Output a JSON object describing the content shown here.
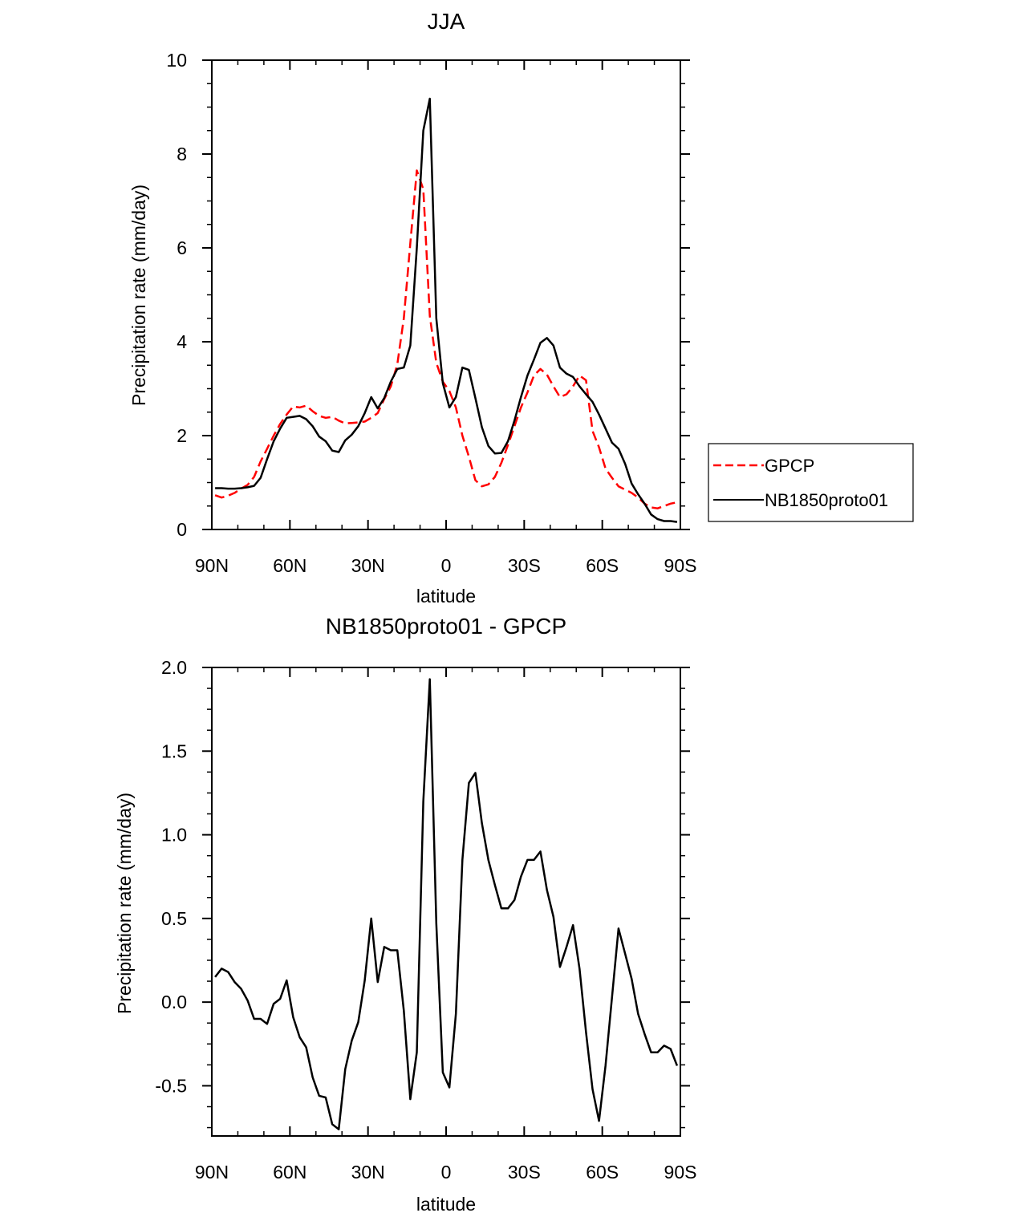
{
  "chart_data": [
    {
      "type": "line",
      "title": "JJA",
      "xlabel": "latitude",
      "ylabel": "Precipitation rate (mm/day)",
      "xlim": [
        -90,
        90
      ],
      "ylim": [
        0,
        10
      ],
      "x_ticks": [
        {
          "value": -90,
          "label": "90N"
        },
        {
          "value": -60,
          "label": "60N"
        },
        {
          "value": -30,
          "label": "30N"
        },
        {
          "value": 0,
          "label": "0"
        },
        {
          "value": 30,
          "label": "30S"
        },
        {
          "value": 60,
          "label": "60S"
        },
        {
          "value": 90,
          "label": "90S"
        }
      ],
      "y_ticks": [
        {
          "value": 0,
          "label": "0"
        },
        {
          "value": 2,
          "label": "2"
        },
        {
          "value": 4,
          "label": "4"
        },
        {
          "value": 6,
          "label": "6"
        },
        {
          "value": 8,
          "label": "8"
        },
        {
          "value": 10,
          "label": "10"
        }
      ],
      "legend": {
        "position": "right",
        "entries": [
          "GPCP",
          "NB1850proto01"
        ]
      },
      "series": [
        {
          "name": "GPCP",
          "color": "#ff0000",
          "dash": true,
          "x": [
            -88.75,
            -86.25,
            -83.75,
            -81.25,
            -78.75,
            -76.25,
            -73.75,
            -71.25,
            -68.75,
            -66.25,
            -63.75,
            -61.25,
            -58.75,
            -56.25,
            -53.75,
            -51.25,
            -48.75,
            -46.25,
            -43.75,
            -41.25,
            -38.75,
            -36.25,
            -33.75,
            -31.25,
            -28.75,
            -26.25,
            -23.75,
            -21.25,
            -18.75,
            -16.25,
            -13.75,
            -11.25,
            -8.75,
            -6.25,
            -3.75,
            -1.25,
            1.25,
            3.75,
            6.25,
            8.75,
            11.25,
            13.75,
            16.25,
            18.75,
            21.25,
            23.75,
            26.25,
            28.75,
            31.25,
            33.75,
            36.25,
            38.75,
            41.25,
            43.75,
            46.25,
            48.75,
            51.25,
            53.75,
            56.25,
            58.75,
            61.25,
            63.75,
            66.25,
            68.75,
            71.25,
            73.75,
            76.25,
            78.75,
            81.25,
            83.75,
            86.25,
            88.75
          ],
          "y": [
            0.73,
            0.68,
            0.72,
            0.78,
            0.87,
            0.95,
            1.12,
            1.45,
            1.72,
            2.0,
            2.25,
            2.45,
            2.62,
            2.6,
            2.64,
            2.52,
            2.42,
            2.38,
            2.4,
            2.32,
            2.26,
            2.27,
            2.28,
            2.3,
            2.38,
            2.48,
            2.78,
            3.05,
            3.52,
            4.5,
            6.1,
            7.65,
            7.25,
            4.55,
            3.55,
            3.15,
            2.95,
            2.6,
            2.0,
            1.55,
            1.05,
            0.92,
            0.96,
            1.12,
            1.42,
            1.8,
            2.2,
            2.6,
            2.92,
            3.28,
            3.42,
            3.3,
            3.05,
            2.82,
            2.88,
            3.05,
            3.28,
            3.18,
            2.1,
            1.75,
            1.3,
            1.1,
            0.92,
            0.85,
            0.78,
            0.68,
            0.55,
            0.47,
            0.45,
            0.5,
            0.55,
            0.58
          ]
        },
        {
          "name": "NB1850proto01",
          "color": "#000000",
          "dash": false,
          "x": [
            -88.75,
            -86.25,
            -83.75,
            -81.25,
            -78.75,
            -76.25,
            -73.75,
            -71.25,
            -68.75,
            -66.25,
            -63.75,
            -61.25,
            -58.75,
            -56.25,
            -53.75,
            -51.25,
            -48.75,
            -46.25,
            -43.75,
            -41.25,
            -38.75,
            -36.25,
            -33.75,
            -31.25,
            -28.75,
            -26.25,
            -23.75,
            -21.25,
            -18.75,
            -16.25,
            -13.75,
            -11.25,
            -8.75,
            -6.25,
            -3.75,
            -1.25,
            1.25,
            3.75,
            6.25,
            8.75,
            11.25,
            13.75,
            16.25,
            18.75,
            21.25,
            23.75,
            26.25,
            28.75,
            31.25,
            33.75,
            36.25,
            38.75,
            41.25,
            43.75,
            46.25,
            48.75,
            51.25,
            53.75,
            56.25,
            58.75,
            61.25,
            63.75,
            66.25,
            68.75,
            71.25,
            73.75,
            76.25,
            78.75,
            81.25,
            83.75,
            86.25,
            88.75
          ],
          "y": [
            0.88,
            0.88,
            0.87,
            0.87,
            0.88,
            0.9,
            0.93,
            1.1,
            1.5,
            1.88,
            2.15,
            2.38,
            2.4,
            2.42,
            2.35,
            2.2,
            1.98,
            1.88,
            1.68,
            1.65,
            1.9,
            2.02,
            2.2,
            2.48,
            2.82,
            2.58,
            2.8,
            3.15,
            3.42,
            3.45,
            3.92,
            6.0,
            8.5,
            9.18,
            4.5,
            3.12,
            2.6,
            2.82,
            3.45,
            3.4,
            2.8,
            2.18,
            1.78,
            1.62,
            1.63,
            1.88,
            2.32,
            2.82,
            3.28,
            3.62,
            3.98,
            4.08,
            3.92,
            3.45,
            3.32,
            3.25,
            3.05,
            2.88,
            2.72,
            2.45,
            2.15,
            1.85,
            1.72,
            1.4,
            0.98,
            0.75,
            0.55,
            0.32,
            0.22,
            0.18,
            0.18,
            0.16
          ]
        }
      ]
    },
    {
      "type": "line",
      "title": "NB1850proto01 - GPCP",
      "xlabel": "latitude",
      "ylabel": "Precipitation rate (mm/day)",
      "xlim": [
        -90,
        90
      ],
      "ylim": [
        -0.8,
        2.0
      ],
      "x_ticks": [
        {
          "value": -90,
          "label": "90N"
        },
        {
          "value": -60,
          "label": "60N"
        },
        {
          "value": -30,
          "label": "30N"
        },
        {
          "value": 0,
          "label": "0"
        },
        {
          "value": 30,
          "label": "30S"
        },
        {
          "value": 60,
          "label": "60S"
        },
        {
          "value": 90,
          "label": "90S"
        }
      ],
      "y_ticks": [
        {
          "value": -0.5,
          "label": "-0.5"
        },
        {
          "value": 0.0,
          "label": "0.0"
        },
        {
          "value": 0.5,
          "label": "0.5"
        },
        {
          "value": 1.0,
          "label": "1.0"
        },
        {
          "value": 1.5,
          "label": "1.5"
        },
        {
          "value": 2.0,
          "label": "2.0"
        }
      ],
      "series": [
        {
          "name": "NB1850proto01 - GPCP",
          "color": "#000000",
          "dash": false,
          "x": [
            -88.75,
            -86.25,
            -83.75,
            -81.25,
            -78.75,
            -76.25,
            -73.75,
            -71.25,
            -68.75,
            -66.25,
            -63.75,
            -61.25,
            -58.75,
            -56.25,
            -53.75,
            -51.25,
            -48.75,
            -46.25,
            -43.75,
            -41.25,
            -38.75,
            -36.25,
            -33.75,
            -31.25,
            -28.75,
            -26.25,
            -23.75,
            -21.25,
            -18.75,
            -16.25,
            -13.75,
            -11.25,
            -8.75,
            -6.25,
            -3.75,
            -1.25,
            1.25,
            3.75,
            6.25,
            8.75,
            11.25,
            13.75,
            16.25,
            18.75,
            21.25,
            23.75,
            26.25,
            28.75,
            31.25,
            33.75,
            36.25,
            38.75,
            41.25,
            43.75,
            46.25,
            48.75,
            51.25,
            53.75,
            56.25,
            58.75,
            61.25,
            63.75,
            66.25,
            68.75,
            71.25,
            73.75,
            76.25,
            78.75,
            81.25,
            83.75,
            86.25,
            88.75
          ],
          "y": [
            0.15,
            0.2,
            0.18,
            0.12,
            0.08,
            0.01,
            -0.1,
            -0.1,
            -0.13,
            -0.01,
            0.02,
            0.13,
            -0.09,
            -0.21,
            -0.27,
            -0.45,
            -0.56,
            -0.57,
            -0.73,
            -0.76,
            -0.4,
            -0.23,
            -0.12,
            0.13,
            0.5,
            0.12,
            0.33,
            0.31,
            0.31,
            -0.05,
            -0.58,
            -0.3,
            1.2,
            1.93,
            0.47,
            -0.42,
            -0.51,
            -0.07,
            0.85,
            1.31,
            1.37,
            1.07,
            0.85,
            0.7,
            0.56,
            0.56,
            0.61,
            0.75,
            0.85,
            0.85,
            0.9,
            0.67,
            0.51,
            0.21,
            0.33,
            0.46,
            0.2,
            -0.18,
            -0.52,
            -0.71,
            -0.38,
            0.03,
            0.44,
            0.29,
            0.14,
            -0.07,
            -0.19,
            -0.3,
            -0.3,
            -0.26,
            -0.28,
            -0.38
          ]
        }
      ]
    }
  ]
}
